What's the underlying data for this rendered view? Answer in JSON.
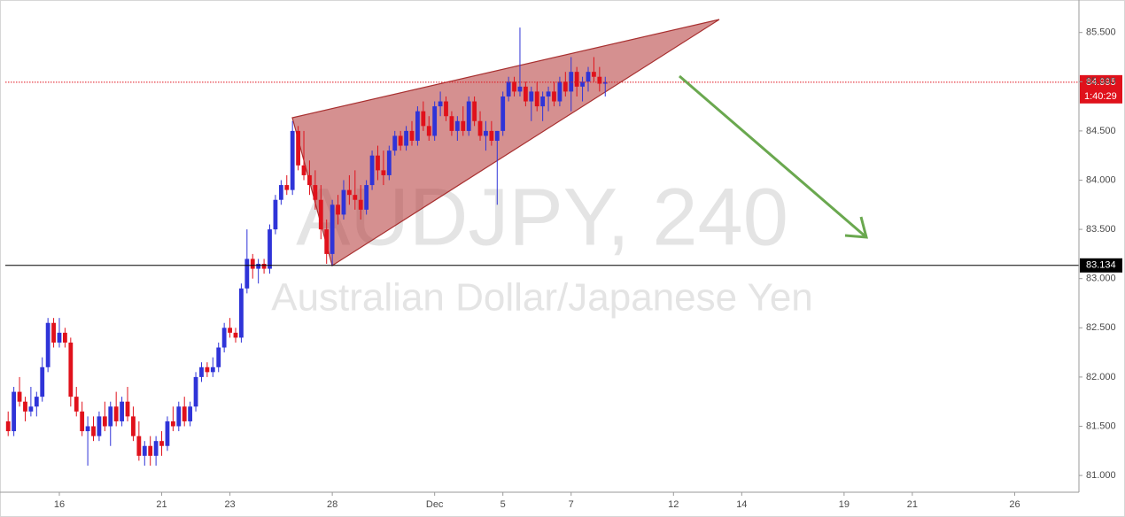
{
  "chart_data": {
    "type": "candlestick",
    "watermark_title": "AUDJPY, 240",
    "watermark_subtitle": "Australian Dollar/Japanese Yen",
    "up_color": "#2f34d8",
    "down_color": "#e0111b",
    "xlim": [
      -0.5,
      188.3
    ],
    "xticks": [
      {
        "value": 9,
        "label": "16"
      },
      {
        "value": 27,
        "label": "21"
      },
      {
        "value": 39,
        "label": "23"
      },
      {
        "value": 57,
        "label": "28"
      },
      {
        "value": 75,
        "label": "Dec"
      },
      {
        "value": 87,
        "label": "5"
      },
      {
        "value": 99,
        "label": "7"
      },
      {
        "value": 117,
        "label": "12"
      },
      {
        "value": 129,
        "label": "14"
      },
      {
        "value": 147,
        "label": "19"
      },
      {
        "value": 159,
        "label": "21"
      },
      {
        "value": 177,
        "label": "26"
      }
    ],
    "ylim": [
      80.83,
      85.83
    ],
    "yticks": [
      {
        "value": 81,
        "label": "81.000"
      },
      {
        "value": 81.5,
        "label": "81.500"
      },
      {
        "value": 82,
        "label": "82.000"
      },
      {
        "value": 82.5,
        "label": "82.500"
      },
      {
        "value": 83,
        "label": "83.000"
      },
      {
        "value": 83.5,
        "label": "83.500"
      },
      {
        "value": 84,
        "label": "84.000"
      },
      {
        "value": 84.5,
        "label": "84.500"
      },
      {
        "value": 85,
        "label": "85.000"
      },
      {
        "value": 85.5,
        "label": "85.500"
      }
    ],
    "last_price": 84.995,
    "timer": "1:40:29",
    "support_level": 83.134,
    "candles": [
      [
        81.55,
        81.65,
        81.4,
        81.45
      ],
      [
        81.45,
        81.9,
        81.4,
        81.85
      ],
      [
        81.85,
        82.0,
        81.7,
        81.75
      ],
      [
        81.75,
        81.8,
        81.55,
        81.65
      ],
      [
        81.65,
        81.9,
        81.6,
        81.7
      ],
      [
        81.7,
        81.85,
        81.6,
        81.8
      ],
      [
        81.8,
        82.2,
        81.75,
        82.1
      ],
      [
        82.1,
        82.6,
        82.05,
        82.55
      ],
      [
        82.55,
        82.6,
        82.3,
        82.35
      ],
      [
        82.35,
        82.6,
        82.3,
        82.45
      ],
      [
        82.45,
        82.5,
        82.3,
        82.35
      ],
      [
        82.35,
        82.4,
        81.7,
        81.8
      ],
      [
        81.8,
        81.9,
        81.6,
        81.65
      ],
      [
        81.65,
        81.75,
        81.4,
        81.45
      ],
      [
        81.45,
        81.6,
        81.1,
        81.5
      ],
      [
        81.5,
        81.6,
        81.35,
        81.4
      ],
      [
        81.4,
        81.65,
        81.35,
        81.6
      ],
      [
        81.6,
        81.75,
        81.45,
        81.5
      ],
      [
        81.5,
        81.75,
        81.3,
        81.7
      ],
      [
        81.7,
        81.85,
        81.5,
        81.55
      ],
      [
        81.55,
        81.8,
        81.5,
        81.75
      ],
      [
        81.75,
        81.9,
        81.55,
        81.6
      ],
      [
        81.6,
        81.7,
        81.35,
        81.4
      ],
      [
        81.4,
        81.55,
        81.15,
        81.2
      ],
      [
        81.2,
        81.35,
        81.1,
        81.3
      ],
      [
        81.3,
        81.4,
        81.1,
        81.2
      ],
      [
        81.2,
        81.4,
        81.1,
        81.35
      ],
      [
        81.35,
        81.45,
        81.2,
        81.3
      ],
      [
        81.3,
        81.6,
        81.25,
        81.55
      ],
      [
        81.55,
        81.7,
        81.45,
        81.5
      ],
      [
        81.5,
        81.75,
        81.45,
        81.7
      ],
      [
        81.7,
        81.8,
        81.5,
        81.55
      ],
      [
        81.55,
        81.75,
        81.5,
        81.7
      ],
      [
        81.7,
        82.05,
        81.65,
        82.0
      ],
      [
        82.0,
        82.15,
        81.95,
        82.1
      ],
      [
        82.1,
        82.15,
        82.0,
        82.05
      ],
      [
        82.05,
        82.2,
        82.0,
        82.1
      ],
      [
        82.1,
        82.35,
        82.05,
        82.3
      ],
      [
        82.3,
        82.55,
        82.25,
        82.5
      ],
      [
        82.5,
        82.6,
        82.4,
        82.45
      ],
      [
        82.45,
        82.5,
        82.35,
        82.4
      ],
      [
        82.4,
        82.95,
        82.35,
        82.9
      ],
      [
        82.9,
        83.5,
        82.85,
        83.2
      ],
      [
        83.2,
        83.25,
        83.0,
        83.1
      ],
      [
        83.1,
        83.2,
        82.95,
        83.15
      ],
      [
        83.15,
        83.2,
        83.05,
        83.1
      ],
      [
        83.1,
        83.55,
        83.05,
        83.5
      ],
      [
        83.5,
        83.85,
        83.45,
        83.8
      ],
      [
        83.8,
        84.0,
        83.75,
        83.95
      ],
      [
        83.95,
        84.05,
        83.85,
        83.9
      ],
      [
        83.9,
        84.6,
        83.85,
        84.5
      ],
      [
        84.5,
        84.55,
        84.1,
        84.15
      ],
      [
        84.15,
        84.5,
        84.0,
        84.05
      ],
      [
        84.05,
        84.2,
        83.85,
        83.95
      ],
      [
        83.95,
        84.1,
        83.7,
        83.8
      ],
      [
        83.8,
        83.95,
        83.4,
        83.5
      ],
      [
        83.5,
        83.6,
        83.15,
        83.25
      ],
      [
        83.25,
        83.8,
        83.13,
        83.75
      ],
      [
        83.75,
        83.85,
        83.55,
        83.65
      ],
      [
        83.65,
        84.0,
        83.6,
        83.9
      ],
      [
        83.9,
        84.05,
        83.75,
        83.85
      ],
      [
        83.85,
        84.1,
        83.7,
        83.8
      ],
      [
        83.8,
        83.95,
        83.6,
        83.7
      ],
      [
        83.7,
        84.0,
        83.65,
        83.95
      ],
      [
        83.95,
        84.3,
        83.9,
        84.25
      ],
      [
        84.25,
        84.35,
        84.0,
        84.1
      ],
      [
        84.1,
        84.3,
        83.95,
        84.05
      ],
      [
        84.05,
        84.35,
        84.0,
        84.3
      ],
      [
        84.3,
        84.5,
        84.25,
        84.45
      ],
      [
        84.45,
        84.5,
        84.3,
        84.35
      ],
      [
        84.35,
        84.55,
        84.3,
        84.5
      ],
      [
        84.5,
        84.6,
        84.35,
        84.4
      ],
      [
        84.4,
        84.75,
        84.35,
        84.7
      ],
      [
        84.7,
        84.8,
        84.5,
        84.55
      ],
      [
        84.55,
        84.65,
        84.4,
        84.45
      ],
      [
        84.45,
        84.8,
        84.4,
        84.75
      ],
      [
        84.75,
        84.9,
        84.65,
        84.8
      ],
      [
        84.8,
        84.85,
        84.6,
        84.65
      ],
      [
        84.65,
        84.7,
        84.45,
        84.5
      ],
      [
        84.5,
        84.65,
        84.4,
        84.6
      ],
      [
        84.6,
        84.75,
        84.45,
        84.5
      ],
      [
        84.5,
        84.85,
        84.45,
        84.8
      ],
      [
        84.8,
        84.85,
        84.55,
        84.6
      ],
      [
        84.6,
        84.7,
        84.4,
        84.45
      ],
      [
        84.45,
        84.6,
        84.3,
        84.5
      ],
      [
        84.5,
        84.6,
        84.35,
        84.4
      ],
      [
        84.4,
        84.5,
        83.75,
        84.5
      ],
      [
        84.5,
        84.9,
        84.45,
        84.85
      ],
      [
        84.85,
        85.05,
        84.8,
        85.0
      ],
      [
        85.0,
        85.05,
        84.85,
        84.9
      ],
      [
        84.9,
        85.55,
        84.85,
        84.95
      ],
      [
        84.95,
        85.0,
        84.75,
        84.8
      ],
      [
        84.8,
        84.95,
        84.6,
        84.9
      ],
      [
        84.9,
        85.0,
        84.7,
        84.75
      ],
      [
        84.75,
        84.9,
        84.6,
        84.85
      ],
      [
        84.85,
        84.95,
        84.7,
        84.9
      ],
      [
        84.9,
        85.0,
        84.75,
        84.8
      ],
      [
        84.8,
        85.05,
        84.75,
        85.0
      ],
      [
        85.0,
        85.1,
        84.85,
        84.9
      ],
      [
        84.9,
        85.25,
        84.7,
        85.1
      ],
      [
        85.1,
        85.15,
        84.85,
        84.95
      ],
      [
        84.95,
        85.05,
        84.8,
        85.0
      ],
      [
        85.0,
        85.15,
        84.9,
        85.1
      ],
      [
        85.1,
        85.25,
        85.0,
        85.05
      ],
      [
        85.05,
        85.15,
        84.9,
        84.98
      ],
      [
        84.98,
        85.05,
        84.85,
        84.995
      ]
    ]
  }
}
